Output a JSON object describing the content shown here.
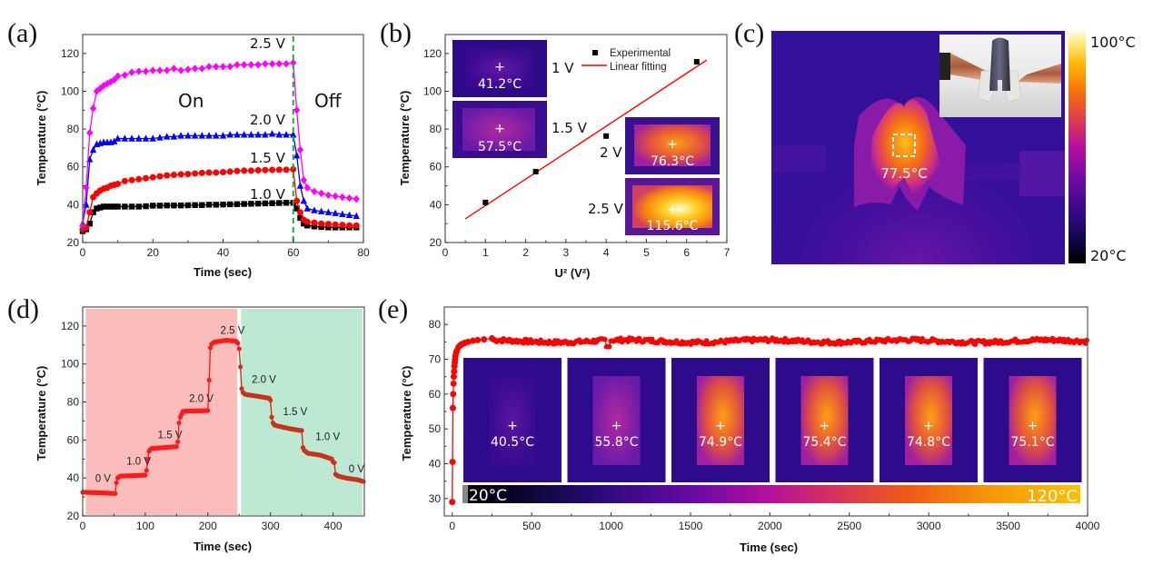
{
  "figure": {
    "panel_labels": [
      "(a)",
      "(b)",
      "(c)",
      "(d)",
      "(e)"
    ]
  },
  "chart_data": [
    {
      "id": "a",
      "type": "line",
      "title": "",
      "xlabel": "Time (sec)",
      "ylabel": "Temperature (°C)",
      "xlim": [
        0,
        80
      ],
      "ylim": [
        20,
        130
      ],
      "xticks": [
        0,
        20,
        40,
        60,
        80
      ],
      "yticks": [
        20,
        40,
        60,
        80,
        100,
        120
      ],
      "annotations": {
        "on": "On",
        "off": "Off",
        "switch_time": 60
      },
      "series": [
        {
          "name": "1.0 V",
          "color": "#000000",
          "marker": "square",
          "x": [
            0,
            1,
            2,
            3,
            4,
            5,
            6,
            7,
            8,
            9,
            10,
            12,
            14,
            16,
            18,
            20,
            22,
            24,
            26,
            28,
            30,
            32,
            34,
            36,
            38,
            40,
            42,
            44,
            46,
            48,
            50,
            52,
            54,
            56,
            58,
            60,
            61,
            62,
            63,
            64,
            66,
            68,
            70,
            72,
            74,
            76,
            78
          ],
          "y": [
            26,
            27,
            30,
            36,
            38,
            38.5,
            39,
            39,
            39,
            39,
            39,
            39,
            39,
            39,
            39.2,
            39.5,
            39.5,
            39.6,
            39.6,
            39.6,
            39.7,
            39.8,
            39.8,
            40,
            40,
            40.1,
            40.2,
            40.3,
            40.4,
            40.5,
            40.6,
            40.7,
            40.8,
            40.9,
            41,
            41,
            38,
            33,
            30,
            29,
            28.5,
            28.2,
            28,
            28,
            28,
            28,
            28
          ]
        },
        {
          "name": "1.5 V",
          "color": "#ff0000",
          "marker": "circle",
          "x": [
            0,
            1,
            2,
            3,
            4,
            5,
            6,
            7,
            8,
            9,
            10,
            12,
            14,
            16,
            18,
            20,
            22,
            24,
            26,
            28,
            30,
            32,
            34,
            36,
            38,
            40,
            42,
            44,
            46,
            48,
            50,
            52,
            54,
            56,
            58,
            60,
            61,
            62,
            63,
            64,
            66,
            68,
            70,
            72,
            74,
            76,
            78
          ],
          "y": [
            27,
            28,
            36,
            44,
            46,
            47.5,
            48.5,
            49,
            50,
            50.5,
            51,
            52.5,
            53,
            53.5,
            54,
            54.5,
            55,
            55.5,
            55.8,
            56,
            56.2,
            56.5,
            56.8,
            57,
            57,
            57.2,
            57.5,
            57.8,
            58,
            58,
            58.2,
            58.3,
            58.4,
            58.5,
            58.5,
            58.7,
            42,
            36,
            32,
            31,
            30.5,
            30,
            29.8,
            29.5,
            29.3,
            29,
            29
          ]
        },
        {
          "name": "2.0 V",
          "color": "#0000ff",
          "marker": "triangle",
          "x": [
            0,
            1,
            2,
            3,
            4,
            5,
            6,
            7,
            8,
            9,
            10,
            12,
            14,
            16,
            18,
            20,
            22,
            24,
            26,
            28,
            30,
            32,
            34,
            36,
            38,
            40,
            42,
            44,
            46,
            48,
            50,
            52,
            54,
            56,
            58,
            60,
            61,
            62,
            63,
            64,
            66,
            68,
            70,
            72,
            74,
            76,
            78
          ],
          "y": [
            30,
            40,
            64,
            69,
            72,
            72.5,
            73,
            73,
            73,
            73.5,
            75,
            75,
            75,
            75,
            75,
            75,
            75.5,
            76,
            76,
            76.5,
            76.5,
            76.5,
            76.5,
            76.5,
            76.5,
            76.5,
            77,
            77,
            77,
            77,
            77,
            77,
            77.5,
            77,
            77,
            77,
            66,
            50,
            42,
            38,
            37,
            36.5,
            36,
            35.5,
            35,
            34.5,
            34
          ]
        },
        {
          "name": "2.5 V",
          "color": "#ff00ff",
          "marker": "diamond",
          "x": [
            0,
            1,
            2,
            3,
            4,
            5,
            6,
            7,
            8,
            9,
            10,
            12,
            14,
            16,
            18,
            20,
            22,
            24,
            26,
            28,
            30,
            32,
            34,
            36,
            38,
            40,
            42,
            44,
            46,
            48,
            50,
            52,
            54,
            56,
            58,
            60,
            61,
            62,
            63,
            64,
            66,
            68,
            70,
            72,
            74,
            76,
            78
          ],
          "y": [
            29,
            49,
            78,
            91,
            100,
            101.5,
            103,
            104,
            105,
            106,
            108,
            108.5,
            110,
            110.5,
            110.5,
            111,
            111,
            111,
            112,
            111,
            111.5,
            112,
            112,
            113,
            113,
            113,
            113,
            114,
            114,
            114,
            114,
            114.5,
            114.5,
            114.5,
            114.5,
            115,
            90,
            69,
            53,
            49,
            47,
            46,
            45,
            44.5,
            44,
            43.5,
            43
          ]
        }
      ],
      "series_labels": [
        "2.5 V",
        "2.0 V",
        "1.5 V",
        "1.0 V"
      ]
    },
    {
      "id": "b",
      "type": "scatter",
      "title": "",
      "xlabel": "U² (V²)",
      "ylabel": "Temperature (°C)",
      "xlim": [
        0,
        7
      ],
      "ylim": [
        20,
        130
      ],
      "xticks": [
        0,
        1,
        2,
        3,
        4,
        5,
        6,
        7
      ],
      "yticks": [
        20,
        40,
        60,
        80,
        100,
        120
      ],
      "legend": {
        "position": "top-right",
        "entries": [
          "Experimental",
          "Linear fitting"
        ]
      },
      "series": [
        {
          "name": "Experimental",
          "type": "scatter",
          "color": "#000000",
          "x": [
            1,
            2.25,
            4,
            6.25
          ],
          "y": [
            41.2,
            57.5,
            76.3,
            115.6
          ]
        },
        {
          "name": "Linear fitting",
          "type": "line",
          "color": "#ff0000",
          "x": [
            0.5,
            6.5
          ],
          "y": [
            32.5,
            116.5
          ]
        }
      ],
      "insets": [
        {
          "voltage": "1 V",
          "temperature": "41.2°C",
          "heat": 0.1
        },
        {
          "voltage": "1.5 V",
          "temperature": "57.5°C",
          "heat": 0.3
        },
        {
          "voltage": "2 V",
          "temperature": "76.3°C",
          "heat": 0.6
        },
        {
          "voltage": "2.5 V",
          "temperature": "115.6°C",
          "heat": 1.0
        }
      ]
    },
    {
      "id": "c",
      "type": "heatmap",
      "title": "",
      "spot_temperature": "77.5°C",
      "colorbar": {
        "max_label": "100°C",
        "min_label": "20°C",
        "range": [
          20,
          100
        ]
      },
      "inset": "photo of bent film clamped between copper clips"
    },
    {
      "id": "d",
      "type": "line",
      "title": "",
      "xlabel": "Time (sec)",
      "ylabel": "Temperature (°C)",
      "xlim": [
        0,
        450
      ],
      "ylim": [
        20,
        130
      ],
      "xticks": [
        0,
        100,
        200,
        300,
        400
      ],
      "yticks": [
        20,
        40,
        60,
        80,
        100,
        120
      ],
      "regions": [
        {
          "name": "heating",
          "from": 5,
          "to": 247,
          "color": "#fbbcbc"
        },
        {
          "name": "cooling",
          "from": 253,
          "to": 447,
          "color": "#bde8d2"
        }
      ],
      "step_labels": [
        {
          "text": "0 V",
          "x": 20,
          "y": 38
        },
        {
          "text": "1.0 V",
          "x": 70,
          "y": 47
        },
        {
          "text": "1.5 V",
          "x": 120,
          "y": 61
        },
        {
          "text": "2.0 V",
          "x": 170,
          "y": 80
        },
        {
          "text": "2.5 V",
          "x": 220,
          "y": 116
        },
        {
          "text": "2.0 V",
          "x": 270,
          "y": 90
        },
        {
          "text": "1.5 V",
          "x": 320,
          "y": 73
        },
        {
          "text": "1.0 V",
          "x": 372,
          "y": 60
        },
        {
          "text": "0 V",
          "x": 425,
          "y": 43
        }
      ],
      "series": [
        {
          "name": "Temperature",
          "color_heating": "#ff1a1a",
          "color_cooling": "#c8321e",
          "x": [
            0,
            20,
            40,
            52,
            54,
            56,
            58,
            60,
            80,
            100,
            102,
            104,
            106,
            108,
            110,
            130,
            150,
            152,
            154,
            156,
            158,
            160,
            170,
            180,
            200,
            202,
            204,
            206,
            208,
            210,
            230,
            245,
            248,
            250,
            252,
            254,
            256,
            260,
            280,
            298,
            300,
            302,
            304,
            306,
            310,
            330,
            348,
            350,
            352,
            354,
            356,
            360,
            380,
            398,
            400,
            402,
            404,
            408,
            420,
            440,
            450
          ],
          "y": [
            32.5,
            32.3,
            32,
            31.8,
            37.5,
            40,
            40.5,
            41,
            41.2,
            41.5,
            44,
            50,
            54,
            55,
            55.5,
            56,
            56.5,
            59,
            69,
            72,
            73.5,
            75,
            75.3,
            75.3,
            75.5,
            91.5,
            108.5,
            110.5,
            111,
            111.5,
            112.5,
            112,
            111,
            108,
            98.5,
            87,
            85,
            84,
            83,
            82,
            81,
            72,
            69,
            68,
            67.5,
            66,
            65,
            65,
            56,
            54.5,
            54,
            53,
            52,
            50,
            48.5,
            48,
            42,
            41,
            40,
            39,
            38
          ]
        }
      ]
    },
    {
      "id": "e",
      "type": "scatter",
      "title": "",
      "xlabel": "Time (sec)",
      "ylabel": "Temperature (°C)",
      "xlim": [
        -50,
        4000
      ],
      "ylim": [
        25,
        85
      ],
      "xticks": [
        0,
        500,
        1000,
        1500,
        2000,
        2500,
        3000,
        3500,
        4000
      ],
      "yticks": [
        30,
        40,
        50,
        60,
        70,
        80
      ],
      "series": [
        {
          "name": "Temperature",
          "color": "#ff0000",
          "rise": {
            "x": [
              0,
              2,
              4,
              6,
              8,
              10,
              12,
              14,
              16,
              18,
              20,
              25,
              30,
              40,
              50,
              60,
              70,
              80,
              100,
              130,
              160,
              200,
              250
            ],
            "y": [
              29,
              40.5,
              56,
              60,
              63,
              65,
              66.5,
              68,
              69,
              70,
              71,
              72,
              72.5,
              73.5,
              74,
              74.3,
              74.5,
              74.7,
              75,
              75.3,
              75.5,
              75.7,
              76
            ]
          },
          "plateau_mean": 75.2,
          "plateau_noise": 0.6,
          "plateau_dip": {
            "x": 980,
            "y": 73.6
          }
        }
      ],
      "insets": [
        {
          "temperature": "40.5°C",
          "heat": 0.1
        },
        {
          "temperature": "55.8°C",
          "heat": 0.35
        },
        {
          "temperature": "74.9°C",
          "heat": 0.85
        },
        {
          "temperature": "75.4°C",
          "heat": 0.85
        },
        {
          "temperature": "74.8°C",
          "heat": 0.8
        },
        {
          "temperature": "75.1°C",
          "heat": 0.8
        }
      ],
      "colorbar": {
        "min_label": "20°C",
        "max_label": "120°C",
        "range": [
          20,
          120
        ]
      }
    }
  ]
}
